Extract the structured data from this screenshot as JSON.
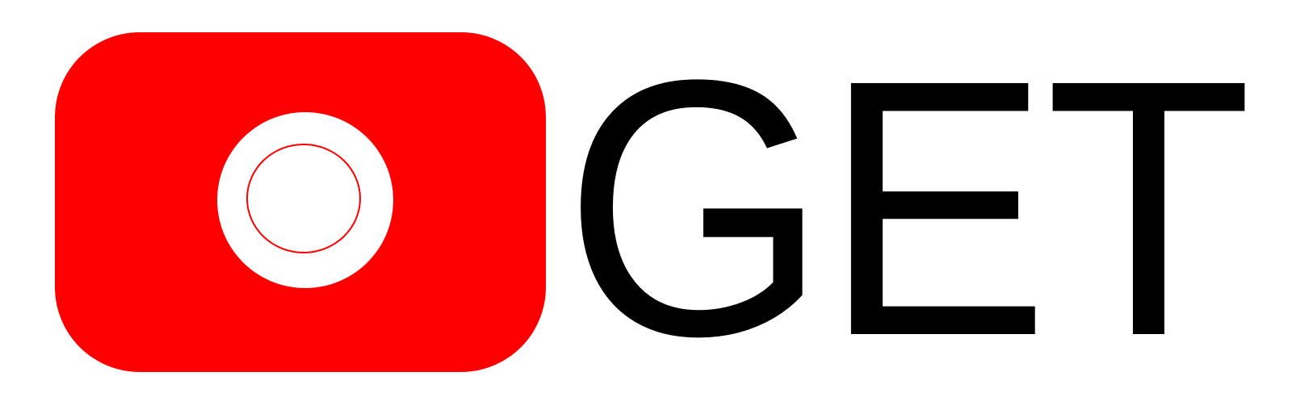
{
  "logo": {
    "wordmark": "GET",
    "icon": "record-badge-icon",
    "colors": {
      "badge": "#ff0000",
      "ring": "#ffffff",
      "inner_stroke": "#ff0000",
      "wordmark": "#000000",
      "background": "#ffffff"
    }
  }
}
